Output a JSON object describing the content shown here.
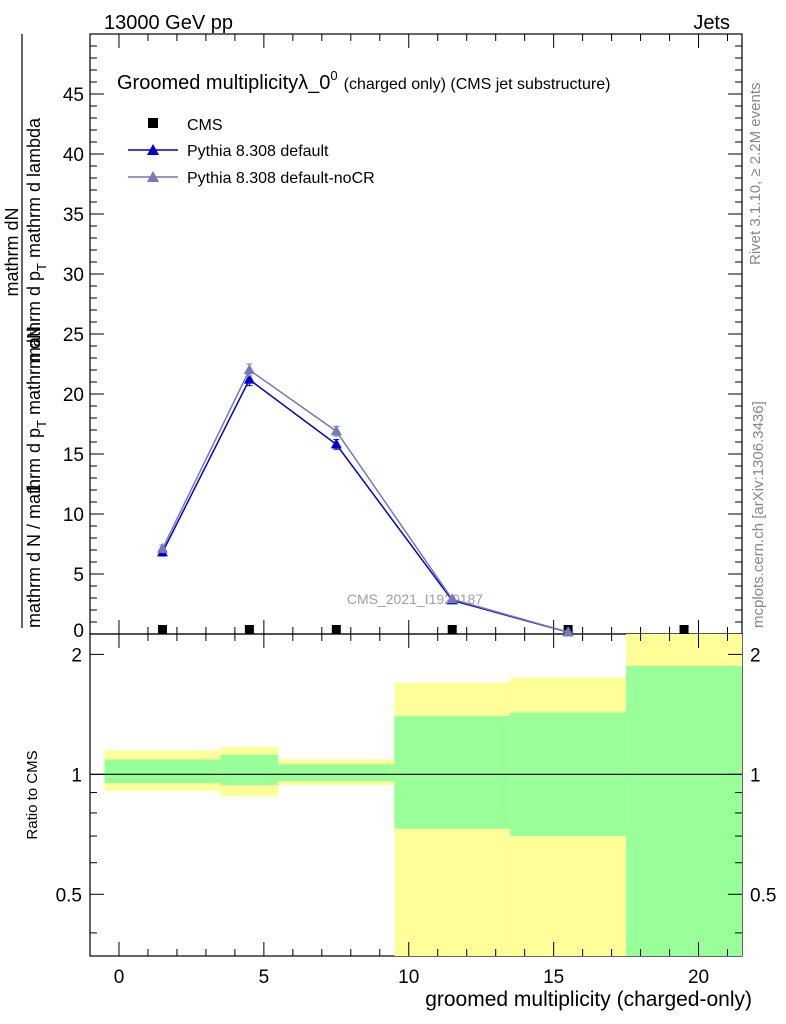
{
  "header": {
    "energy_label": "13000 GeV pp",
    "process_label": "Jets"
  },
  "side_labels": {
    "rivet": "Rivet 3.1.10, ≥ 2.2M events",
    "mcplots": "mcplots.cern.ch [arXiv:1306.3436]"
  },
  "watermark": "CMS_2021_I1920187",
  "chart_data": [
    {
      "type": "line",
      "title": "Groomed multiplicityλ_0",
      "title_superscript": "0",
      "subtitle": "(charged only) (CMS jet substructure)",
      "ylabel_numerator": "mathrm dN",
      "ylabel_denominator": "mathrm d N / mathrm d p",
      "ylabel_full": "1 / (mathrm d N / mathrm d p_T) · mathrm dN / (mathrm d p_T mathrm d lambda)",
      "xlim": [
        -1,
        21.5
      ],
      "ylim": [
        0,
        50
      ],
      "yticks": [
        5,
        10,
        15,
        20,
        25,
        30,
        35,
        40,
        45
      ],
      "ytick_labels": [
        "5",
        "10",
        "15",
        "20",
        "25",
        "30",
        "35",
        "40",
        "45"
      ],
      "legend_position": "top-left",
      "series": [
        {
          "name": "CMS",
          "color": "#000000",
          "marker": "square",
          "x": [
            1.5,
            4.5,
            7.5,
            11.5,
            15.5,
            19.5
          ],
          "y": [
            0.12,
            0.2,
            0.15,
            0.12,
            0.05,
            0.05
          ]
        },
        {
          "name": "Pythia 8.308 default",
          "color": "#0000cc",
          "marker": "triangle",
          "x": [
            1.5,
            4.5,
            7.5,
            11.5,
            15.5
          ],
          "y": [
            6.8,
            21.2,
            15.8,
            2.8,
            0.15
          ],
          "yerr": [
            0.3,
            0.5,
            0.4,
            0.15,
            0.05
          ]
        },
        {
          "name": "Pythia 8.308 default-noCR",
          "color": "#7777bb",
          "marker": "triangle",
          "x": [
            1.5,
            4.5,
            7.5,
            11.5,
            15.5
          ],
          "y": [
            7.1,
            22.0,
            16.9,
            2.9,
            0.16
          ],
          "yerr": [
            0.3,
            0.5,
            0.4,
            0.15,
            0.05
          ]
        }
      ]
    },
    {
      "type": "area",
      "ylabel": "Ratio to CMS",
      "xlabel": "groomed multiplicity (charged-only)",
      "xlim": [
        -1,
        21.5
      ],
      "ylim": [
        0.35,
        2.25
      ],
      "xticks": [
        0,
        5,
        10,
        15,
        20
      ],
      "xtick_labels": [
        "0",
        "5",
        "10",
        "15",
        "20"
      ],
      "yticks": [
        0.5,
        1,
        2
      ],
      "ytick_labels": [
        "0.5",
        "1",
        "2"
      ],
      "reference_line": 1,
      "colors": {
        "stat": "#99ff99",
        "total": "#ffff99"
      },
      "bands": [
        {
          "xlo": -0.5,
          "xhi": 3.5,
          "total": [
            0.91,
            1.15
          ],
          "stat": [
            0.95,
            1.09
          ]
        },
        {
          "xlo": 3.5,
          "xhi": 5.5,
          "total": [
            0.88,
            1.17
          ],
          "stat": [
            0.94,
            1.12
          ]
        },
        {
          "xlo": 5.5,
          "xhi": 9.5,
          "total": [
            0.94,
            1.09
          ],
          "stat": [
            0.96,
            1.06
          ]
        },
        {
          "xlo": 9.5,
          "xhi": 13.5,
          "total": [
            0.35,
            1.7
          ],
          "stat": [
            0.73,
            1.4
          ]
        },
        {
          "xlo": 13.5,
          "xhi": 17.5,
          "total": [
            0.35,
            1.75
          ],
          "stat": [
            0.7,
            1.43
          ]
        },
        {
          "xlo": 17.5,
          "xhi": 21.5,
          "total": [
            0.35,
            2.25
          ],
          "stat": [
            0.35,
            1.87
          ]
        }
      ]
    }
  ]
}
